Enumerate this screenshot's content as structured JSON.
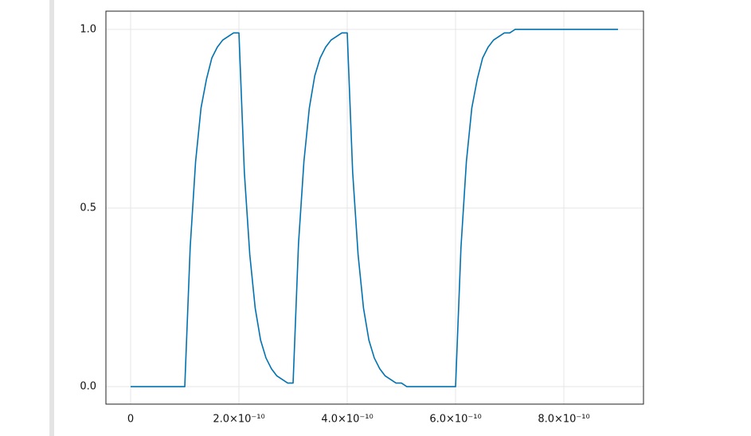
{
  "chart_data": {
    "type": "line",
    "x": [
      0,
      1e-11,
      2e-11,
      3e-11,
      4e-11,
      5e-11,
      6e-11,
      7e-11,
      8e-11,
      9e-11,
      1e-10,
      1.1e-10,
      1.2e-10,
      1.3e-10,
      1.4e-10,
      1.5e-10,
      1.6e-10,
      1.7e-10,
      1.8e-10,
      1.9e-10,
      2e-10,
      2.1e-10,
      2.2e-10,
      2.3e-10,
      2.4e-10,
      2.5e-10,
      2.6e-10,
      2.7e-10,
      2.8e-10,
      2.9e-10,
      3e-10,
      3.1e-10,
      3.2e-10,
      3.3e-10,
      3.4e-10,
      3.5e-10,
      3.6e-10,
      3.7e-10,
      3.8e-10,
      3.9e-10,
      4e-10,
      4.1e-10,
      4.2e-10,
      4.3e-10,
      4.4e-10,
      4.5e-10,
      4.6e-10,
      4.7e-10,
      4.8e-10,
      4.9e-10,
      5e-10,
      5.1e-10,
      5.2e-10,
      5.3e-10,
      5.4e-10,
      5.5e-10,
      5.6e-10,
      5.7e-10,
      5.8e-10,
      5.9e-10,
      6e-10,
      6.1e-10,
      6.2e-10,
      6.3e-10,
      6.4e-10,
      6.5e-10,
      6.6e-10,
      6.7e-10,
      6.8e-10,
      6.9e-10,
      7e-10,
      7.1e-10,
      7.2e-10,
      7.3e-10,
      7.4e-10,
      7.5e-10,
      7.6e-10,
      7.7e-10,
      7.8e-10,
      7.9e-10,
      8e-10,
      8.1e-10,
      8.2e-10,
      8.3e-10,
      8.4e-10,
      8.5e-10,
      8.6e-10,
      8.7e-10,
      8.8e-10,
      8.9e-10,
      9e-10
    ],
    "values": [
      0,
      0,
      0,
      0,
      0,
      0,
      0,
      0,
      0,
      0,
      0,
      0.39,
      0.63,
      0.78,
      0.86,
      0.92,
      0.95,
      0.97,
      0.98,
      0.99,
      0.99,
      0.6,
      0.37,
      0.22,
      0.13,
      0.08,
      0.05,
      0.03,
      0.02,
      0.01,
      0.01,
      0.4,
      0.63,
      0.78,
      0.87,
      0.92,
      0.95,
      0.97,
      0.98,
      0.99,
      0.99,
      0.6,
      0.37,
      0.22,
      0.13,
      0.08,
      0.05,
      0.03,
      0.02,
      0.01,
      0.01,
      0,
      0,
      0,
      0,
      0,
      0,
      0,
      0,
      0,
      0,
      0.39,
      0.63,
      0.78,
      0.86,
      0.92,
      0.95,
      0.97,
      0.98,
      0.99,
      0.99,
      1,
      1,
      1,
      1,
      1,
      1,
      1,
      1,
      1,
      1,
      1,
      1,
      1,
      1,
      1,
      1,
      1,
      1,
      1,
      1
    ],
    "color": "#0072b2",
    "xlim": [
      -4.56e-11,
      9.47e-10
    ],
    "ylim": [
      -0.049,
      1.051
    ],
    "xticks": [
      0,
      {
        "value": 2e-10,
        "label": "2.0×10⁻¹⁰"
      },
      {
        "value": 4e-10,
        "label": "4.0×10⁻¹⁰"
      },
      {
        "value": 6e-10,
        "label": "6.0×10⁻¹⁰"
      },
      {
        "value": 8e-10,
        "label": "8.0×10⁻¹⁰"
      }
    ],
    "yticks": [
      {
        "value": 0,
        "label": "0.0"
      },
      {
        "value": 0.5,
        "label": "0.5"
      },
      {
        "value": 1,
        "label": "1.0"
      }
    ],
    "grid": true
  }
}
